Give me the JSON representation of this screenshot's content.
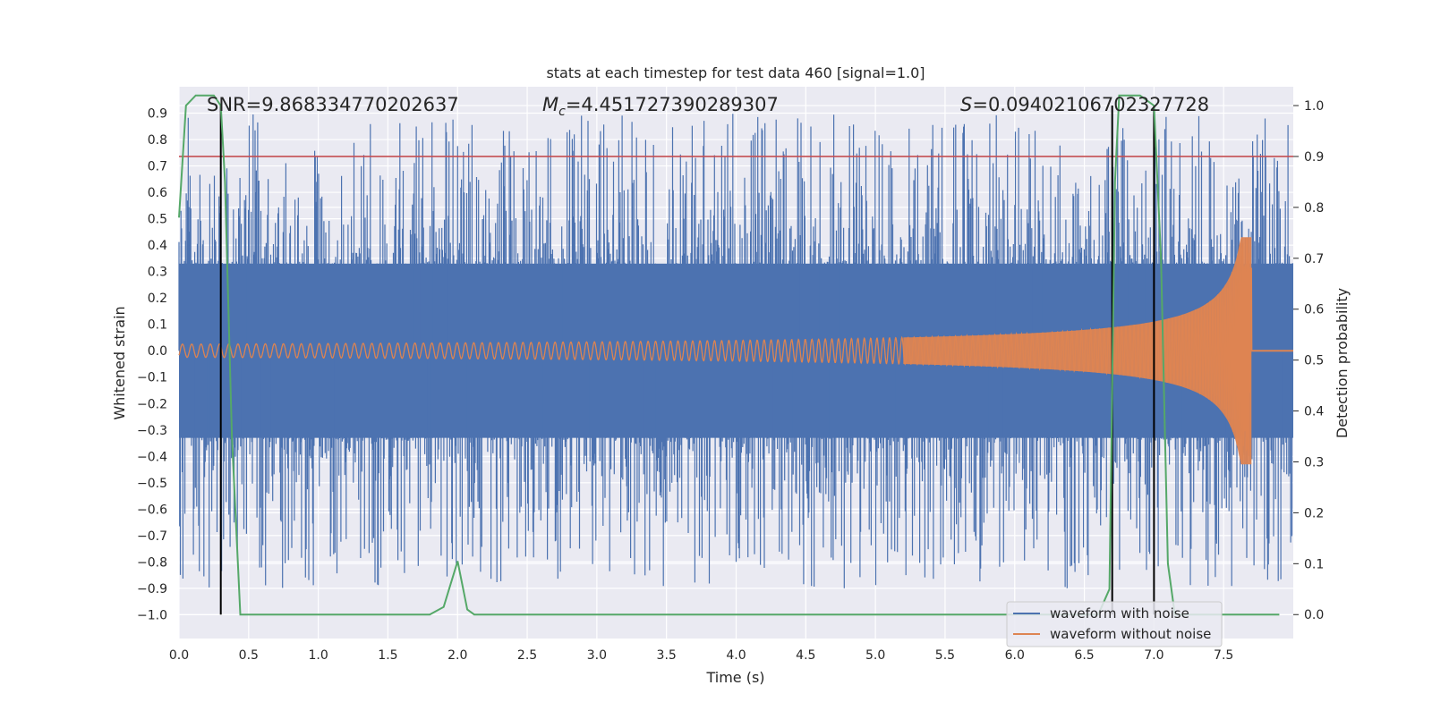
{
  "chart_data": {
    "type": "line",
    "title": "stats at each timestep for test data 460 [signal=1.0]",
    "xlabel": "Time (s)",
    "ylabel": "Whitened strain",
    "y2label": "Detection probability",
    "xlim": [
      0,
      8
    ],
    "ylim": [
      -1.09,
      1.0
    ],
    "y2lim": [
      -0.047,
      1.037
    ],
    "xticks": [
      "0.0",
      "0.5",
      "1.0",
      "1.5",
      "2.0",
      "2.5",
      "3.0",
      "3.5",
      "4.0",
      "4.5",
      "5.0",
      "5.5",
      "6.0",
      "6.5",
      "7.0",
      "7.5"
    ],
    "yticks": [
      "0.9",
      "0.8",
      "0.7",
      "0.6",
      "0.5",
      "0.4",
      "0.3",
      "0.2",
      "0.1",
      "0.0",
      "−0.1",
      "−0.2",
      "−0.3",
      "−0.4",
      "−0.5",
      "−0.6",
      "−0.7",
      "−0.8",
      "−0.9",
      "−1.0"
    ],
    "y2ticks": [
      "1.0",
      "0.9",
      "0.8",
      "0.7",
      "0.6",
      "0.5",
      "0.4",
      "0.3",
      "0.2",
      "0.1",
      "0.0"
    ],
    "annotations": {
      "snr": "SNR=9.868334770202637",
      "mc_symbol": "M",
      "mc_sub": "c",
      "mc_value": "=4.451727390289307",
      "s_symbol": "S",
      "s_value": "=0.09402106702327728"
    },
    "series": [
      {
        "name": "waveform with noise",
        "color": "#4c72b0",
        "envelope": 0.33,
        "spike_max": 0.9
      },
      {
        "name": "waveform without noise",
        "color": "#dd8452",
        "amplitude_start": 0.025,
        "amplitude_peak": 0.43,
        "merger_time": 7.7
      },
      {
        "name": "detection probability",
        "color": "#55a868",
        "axis": "right",
        "x": [
          0.0,
          0.05,
          0.12,
          0.25,
          0.3,
          0.33,
          0.38,
          0.44,
          0.6,
          0.65,
          1.0,
          1.5,
          1.8,
          1.9,
          2.0,
          2.07,
          2.12,
          2.5,
          3.0,
          4.0,
          5.0,
          6.0,
          6.6,
          6.68,
          6.72,
          6.75,
          6.9,
          7.0,
          7.05,
          7.1,
          7.15,
          7.5,
          7.9
        ],
        "y": [
          0.78,
          1.0,
          1.02,
          1.02,
          1.0,
          0.85,
          0.35,
          0.0,
          0.0,
          0.0,
          0.0,
          0.0,
          0.0,
          0.015,
          0.105,
          0.01,
          0.0,
          0.0,
          0.0,
          0.0,
          0.0,
          0.0,
          0.0,
          0.05,
          0.85,
          1.02,
          1.02,
          1.0,
          0.7,
          0.1,
          0.0,
          0.0,
          0.0
        ]
      },
      {
        "name": "threshold",
        "color": "#c44e52",
        "axis": "right",
        "value": 0.9
      }
    ],
    "vlines": [
      0.3,
      6.7,
      7.0
    ],
    "legend_position": "lower-right"
  }
}
